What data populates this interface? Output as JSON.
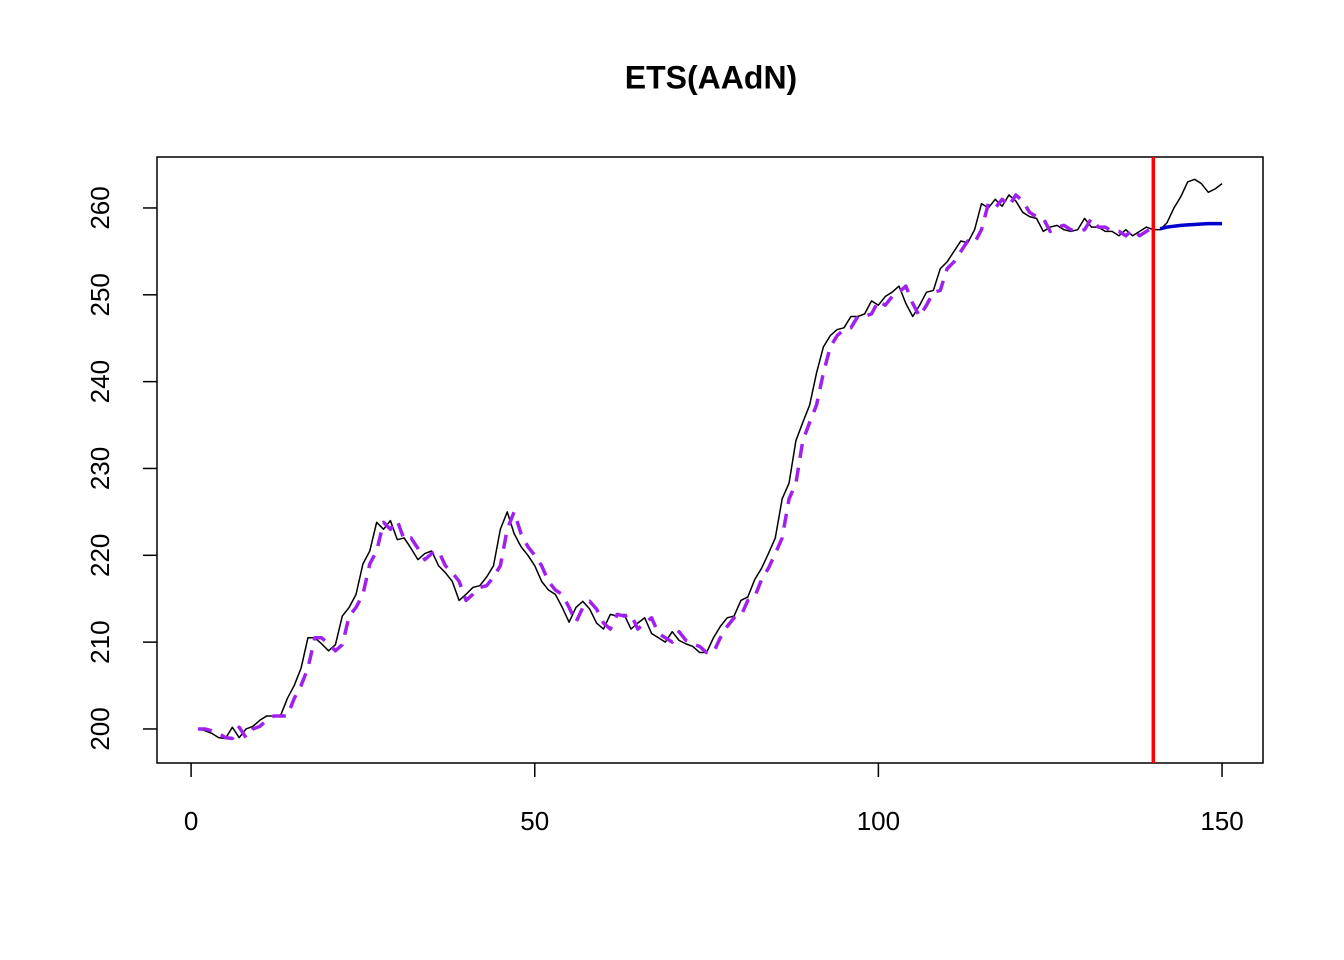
{
  "chart_data": {
    "type": "line",
    "title": "ETS(AAdN)",
    "xlim": [
      -4.96,
      155.96
    ],
    "xticks": [
      0,
      50,
      100,
      150
    ],
    "ylim": [
      196.08,
      265.87
    ],
    "yticks": [
      200,
      210,
      220,
      230,
      240,
      250,
      260
    ],
    "vlines": [
      {
        "value": 140,
        "color": "#ff0000"
      }
    ],
    "series": [
      {
        "color": "#000000",
        "line_style": "solid",
        "line_width": 1.5,
        "x": [
          1,
          2,
          3,
          4,
          5,
          6,
          7,
          8,
          9,
          10,
          11,
          12,
          13,
          14,
          15,
          16,
          17,
          18,
          19,
          20,
          21,
          22,
          23,
          24,
          25,
          26,
          27,
          28,
          29,
          30,
          31,
          32,
          33,
          34,
          35,
          36,
          37,
          38,
          39,
          40,
          41,
          42,
          43,
          44,
          45,
          46,
          47,
          48,
          49,
          50,
          51,
          52,
          53,
          54,
          55,
          56,
          57,
          58,
          59,
          60,
          61,
          62,
          63,
          64,
          65,
          66,
          67,
          68,
          69,
          70,
          71,
          72,
          73,
          74,
          75,
          76,
          77,
          78,
          79,
          80,
          81,
          82,
          83,
          84,
          85,
          86,
          87,
          88,
          89,
          90,
          91,
          92,
          93,
          94,
          95,
          96,
          97,
          98,
          99,
          100,
          101,
          102,
          103,
          104,
          105,
          106,
          107,
          108,
          109,
          110,
          111,
          112,
          113,
          114,
          115,
          116,
          117,
          118,
          119,
          120,
          121,
          122,
          123,
          124,
          125,
          126,
          127,
          128,
          129,
          130,
          131,
          132,
          133,
          134,
          135,
          136,
          137,
          138,
          139,
          140,
          141,
          142,
          143,
          144,
          145,
          146,
          147,
          148,
          149,
          150
        ],
        "values": [
          200,
          199.8,
          199.5,
          199,
          198.9,
          200.2,
          199,
          200,
          200.3,
          201,
          201.5,
          201.5,
          201.5,
          203.5,
          205,
          207,
          210.5,
          210.5,
          209.8,
          209,
          209.7,
          213,
          214,
          215.5,
          219,
          220.5,
          223.8,
          223,
          224,
          221.8,
          222,
          220.8,
          219.5,
          220.2,
          220.5,
          218.8,
          218,
          217,
          214.8,
          215.5,
          216.3,
          216.5,
          217.5,
          218.8,
          223,
          225,
          222.5,
          221,
          220,
          218.8,
          217,
          216,
          215.5,
          214,
          212.3,
          214,
          214.7,
          213.8,
          212.2,
          211.5,
          213.2,
          213,
          213.2,
          211.5,
          212.2,
          212.8,
          211,
          210.5,
          210,
          211.2,
          210.2,
          209.8,
          209.5,
          208.8,
          208.8,
          210.5,
          211.8,
          212.8,
          213,
          214.8,
          215.2,
          217.2,
          218.5,
          220.2,
          222,
          226.5,
          228.3,
          233.2,
          235.3,
          237.3,
          241,
          244,
          245.3,
          246,
          246.2,
          247.5,
          247.5,
          247.8,
          249.3,
          248.8,
          249.8,
          250.3,
          251,
          249,
          247.5,
          248.8,
          250.3,
          250.5,
          253,
          253.8,
          255,
          256.2,
          256,
          257.5,
          260.5,
          260,
          261,
          260.2,
          261.5,
          260.8,
          259.5,
          259,
          258.8,
          257.3,
          257.8,
          258,
          257.5,
          257.3,
          257.5,
          258.8,
          257.8,
          257.8,
          257.3,
          257.3,
          256.8,
          257.5,
          256.8,
          257.3,
          257.8,
          257.5,
          257.5,
          258.3,
          260,
          261.3,
          263,
          263.3,
          262.8,
          261.8,
          262.2,
          262.8
        ]
      },
      {
        "color": "#a020f0",
        "line_style": "dashed",
        "line_width": 3.5,
        "x": [
          1,
          2,
          3,
          4,
          5,
          6,
          7,
          8,
          9,
          10,
          11,
          12,
          13,
          14,
          15,
          16,
          17,
          18,
          19,
          20,
          21,
          22,
          23,
          24,
          25,
          26,
          27,
          28,
          29,
          30,
          31,
          32,
          33,
          34,
          35,
          36,
          37,
          38,
          39,
          40,
          41,
          42,
          43,
          44,
          45,
          46,
          47,
          48,
          49,
          50,
          51,
          52,
          53,
          54,
          55,
          56,
          57,
          58,
          59,
          60,
          61,
          62,
          63,
          64,
          65,
          66,
          67,
          68,
          69,
          70,
          71,
          72,
          73,
          74,
          75,
          76,
          77,
          78,
          79,
          80,
          81,
          82,
          83,
          84,
          85,
          86,
          87,
          88,
          89,
          90,
          91,
          92,
          93,
          94,
          95,
          96,
          97,
          98,
          99,
          100,
          101,
          102,
          103,
          104,
          105,
          106,
          107,
          108,
          109,
          110,
          111,
          112,
          113,
          114,
          115,
          116,
          117,
          118,
          119,
          120,
          121,
          122,
          123,
          124,
          125,
          126,
          127,
          128,
          129,
          130,
          131,
          132,
          133,
          134,
          135,
          136,
          137,
          138,
          139,
          140
        ],
        "values": [
          200,
          200,
          199.8,
          199.5,
          199,
          198.9,
          200.2,
          199,
          200,
          200.3,
          201,
          201.5,
          201.5,
          201.5,
          203.5,
          205,
          207,
          210.5,
          210.5,
          209.8,
          209,
          209.7,
          213,
          214,
          215.5,
          219,
          220.5,
          223.8,
          223,
          224,
          221.8,
          222,
          220.8,
          219.5,
          220.2,
          220.5,
          218.8,
          218,
          217,
          214.8,
          215.5,
          216.3,
          216.5,
          217.5,
          218.8,
          223,
          225,
          222.5,
          221,
          220,
          218.8,
          217,
          216,
          215.5,
          214,
          212.3,
          214,
          214.7,
          213.8,
          212.2,
          211.5,
          213.2,
          213,
          213.2,
          211.5,
          212.2,
          212.8,
          211,
          210.5,
          210,
          211.2,
          210.2,
          209.8,
          209.5,
          208.8,
          208.8,
          210.5,
          211.8,
          212.8,
          213,
          214.8,
          215.2,
          217.2,
          218.5,
          220.2,
          222,
          226.5,
          228.3,
          233.2,
          235.3,
          237.3,
          241,
          244,
          245.3,
          246,
          246.2,
          247.5,
          247.5,
          247.8,
          249.3,
          248.8,
          249.8,
          250.3,
          251,
          249,
          247.5,
          248.8,
          250.3,
          250.5,
          253,
          253.8,
          255,
          256.2,
          256,
          257.5,
          260.5,
          260,
          261,
          260.2,
          261.5,
          260.8,
          259.5,
          259,
          258.8,
          257.3,
          257.8,
          258,
          257.5,
          257.3,
          257.5,
          258.8,
          257.8,
          257.8,
          257.3,
          257.3,
          256.8,
          257.5,
          256.8,
          257.3,
          257.8
        ]
      },
      {
        "color": "#0000cd",
        "line_style": "solid",
        "line_width": 3.5,
        "x": [
          141,
          142,
          143,
          144,
          145,
          146,
          147,
          148,
          149,
          150
        ],
        "values": [
          257.6,
          257.8,
          257.9,
          258.0,
          258.05,
          258.1,
          258.15,
          258.2,
          258.2,
          258.2
        ]
      }
    ]
  }
}
